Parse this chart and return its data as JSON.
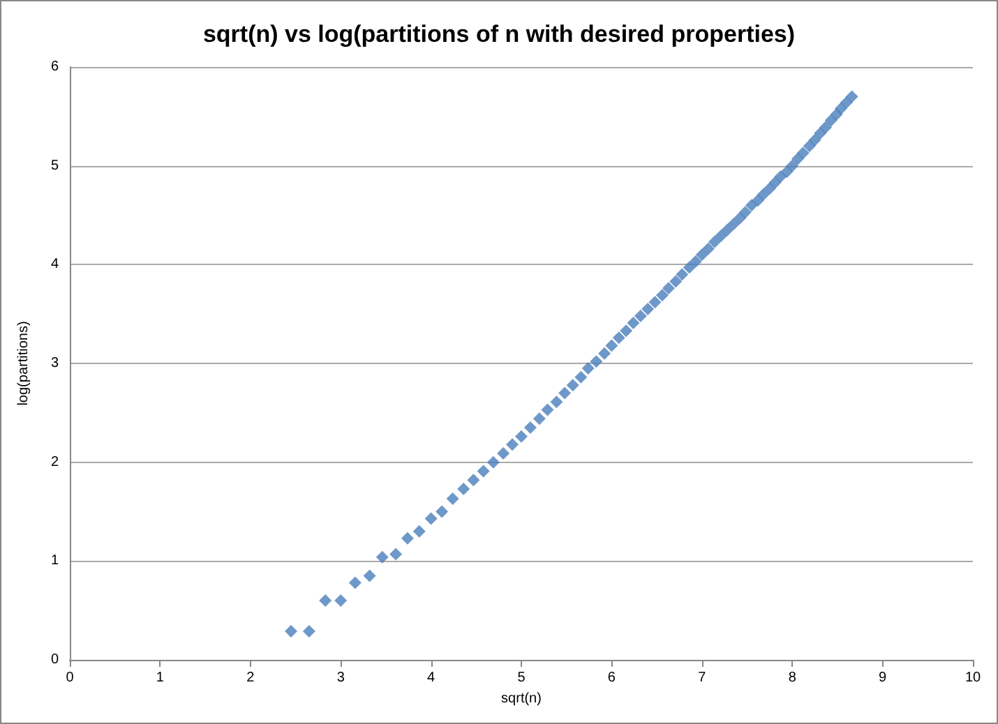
{
  "chart_data": {
    "type": "scatter",
    "title": "sqrt(n) vs log(partitions of n with desired properties)",
    "xlabel": "sqrt(n)",
    "ylabel": "log(partitions)",
    "x": [
      2.45,
      2.65,
      2.83,
      3,
      3.16,
      3.32,
      3.46,
      3.61,
      3.74,
      3.87,
      4,
      4.12,
      4.24,
      4.36,
      4.47,
      4.58,
      4.69,
      4.8,
      4.9,
      5,
      5.1,
      5.2,
      5.29,
      5.39,
      5.48,
      5.57,
      5.66,
      5.74,
      5.83,
      5.92,
      6,
      6.08,
      6.16,
      6.24,
      6.32,
      6.4,
      6.48,
      6.56,
      6.63,
      6.71,
      6.78,
      6.86,
      6.93,
      7,
      7.07,
      7.14,
      7.21,
      7.28,
      7.35,
      7.42,
      7.48,
      7.55,
      7.62,
      7.68,
      7.75,
      7.81,
      7.87,
      7.94,
      8,
      8.06,
      8.12,
      8.19,
      8.25,
      8.31,
      8.37,
      8.43,
      8.49,
      8.54,
      8.6,
      8.66
    ],
    "series": [
      {
        "color": "#4a7ebb",
        "values": [
          0.29,
          0.29,
          0.6,
          0.6,
          0.78,
          0.85,
          1.04,
          1.07,
          1.23,
          1.3,
          1.43,
          1.5,
          1.63,
          1.73,
          1.82,
          1.91,
          2.0,
          2.09,
          2.18,
          2.26,
          2.35,
          2.44,
          2.53,
          2.61,
          2.7,
          2.78,
          2.86,
          2.95,
          3.02,
          3.1,
          3.18,
          3.26,
          3.33,
          3.41,
          3.48,
          3.55,
          3.62,
          3.69,
          3.76,
          3.83,
          3.9,
          3.97,
          4.03,
          4.1,
          4.16,
          4.23,
          4.29,
          4.35,
          4.41,
          4.47,
          4.53,
          4.6,
          4.65,
          4.71,
          4.77,
          4.83,
          4.89,
          4.94,
          5.0,
          5.07,
          5.13,
          5.2,
          5.26,
          5.33,
          5.39,
          5.46,
          5.52,
          5.58,
          5.64,
          5.7
        ]
      }
    ],
    "xlim": [
      0,
      10
    ],
    "xticks": [
      0,
      1,
      2,
      3,
      4,
      5,
      6,
      7,
      8,
      9,
      10
    ],
    "ylim": [
      0,
      6
    ],
    "yticks": [
      0,
      1,
      2,
      3,
      4,
      5,
      6
    ],
    "grid": "y",
    "marker": "diamond"
  }
}
